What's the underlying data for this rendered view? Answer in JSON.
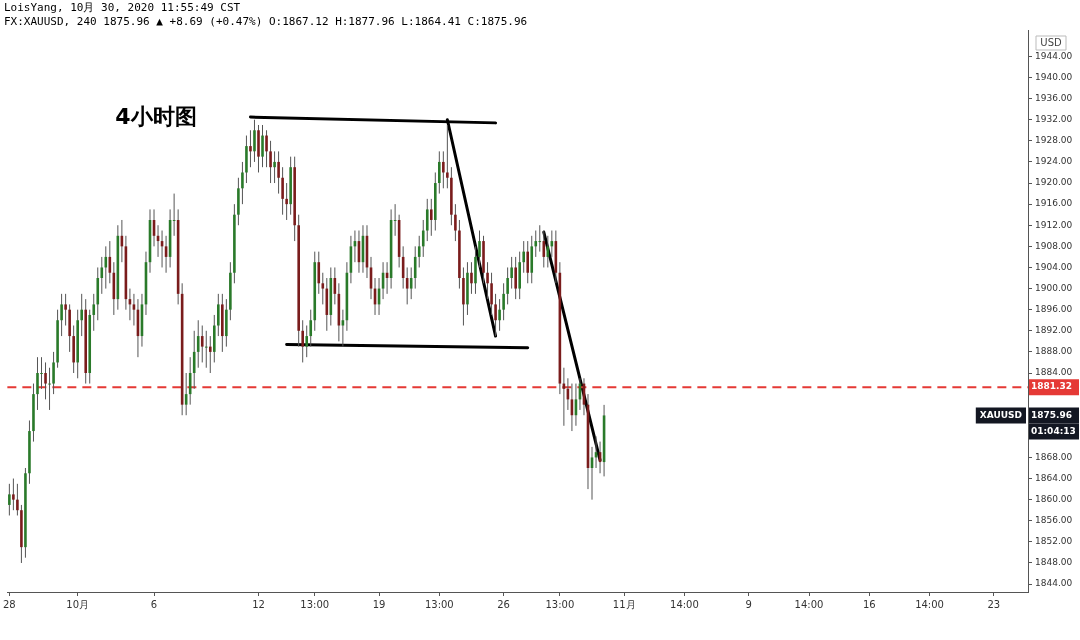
{
  "chart_data": {
    "type": "candlestick",
    "title": "4小时图",
    "subtitle": "FX:XAUUSD, 240 1875.96 ▲ +8.69 (+0.47%) O:1867.12 H:1877.96 L:1864.41 C:1875.96",
    "annotations": [
      "LoisYang, 10月 30, 2020 11:55:49 CST",
      "USD",
      "01:04:13",
      "XAUUSD",
      "1875.96"
    ],
    "categories": [
      "28",
      null,
      null,
      null,
      null,
      null,
      null,
      null,
      null,
      null,
      null,
      null,
      null,
      null,
      null,
      null,
      null,
      "10月",
      null,
      null,
      null,
      null,
      null,
      null,
      null,
      null,
      null,
      null,
      null,
      null,
      null,
      null,
      null,
      null,
      null,
      null,
      "6",
      null,
      null,
      null,
      null,
      null,
      null,
      null,
      null,
      null,
      null,
      null,
      null,
      null,
      null,
      null,
      null,
      null,
      null,
      null,
      null,
      null,
      null,
      null,
      null,
      null,
      "12",
      null,
      null,
      null,
      null,
      null,
      null,
      null,
      null,
      null,
      null,
      null,
      null,
      null,
      "13:00",
      null,
      null,
      null,
      null,
      null,
      null,
      null,
      null,
      null,
      null,
      null,
      null,
      null,
      null,
      null,
      "19",
      null,
      null,
      null,
      null,
      null,
      null,
      null,
      null,
      null,
      null,
      null,
      null,
      null,
      null,
      "13:00",
      null,
      null,
      null,
      null,
      null,
      null,
      null,
      null,
      null,
      null,
      null,
      null,
      null,
      null,
      null,
      "26",
      null,
      null,
      null,
      null,
      null,
      null,
      null,
      null,
      null,
      null,
      null,
      null,
      null,
      "13:00",
      null,
      null,
      null,
      null,
      null,
      null,
      null,
      null,
      null,
      null,
      null,
      null,
      null,
      null,
      null,
      "11月",
      null,
      null,
      null,
      null,
      null,
      null,
      null,
      null,
      null,
      null,
      null,
      null,
      null,
      null,
      "14:00",
      null,
      null,
      null,
      null,
      null,
      null,
      null,
      null,
      null,
      null,
      null,
      null,
      null,
      null,
      null,
      "9",
      null,
      null,
      null,
      null,
      null,
      null,
      null,
      null,
      null,
      null,
      null,
      null,
      null,
      null,
      "14:00",
      null,
      null,
      null,
      null,
      null,
      null,
      null,
      null,
      null,
      null,
      null,
      null,
      null,
      null,
      "16",
      null,
      null,
      null,
      null,
      null,
      null,
      null,
      null,
      null,
      null,
      null,
      null,
      null,
      null,
      "14:00",
      null,
      null,
      null,
      null,
      null,
      null,
      null,
      null,
      null,
      null,
      null,
      null,
      null,
      null,
      null,
      "23",
      null,
      null,
      null,
      null,
      null,
      null,
      null,
      null
    ],
    "ylim": [
      1842.5,
      1949
    ],
    "yticks": [
      {
        "value": 1844,
        "label": "1844.00"
      },
      {
        "value": 1848,
        "label": "1848.00"
      },
      {
        "value": 1852,
        "label": "1852.00"
      },
      {
        "value": 1856,
        "label": "1856.00"
      },
      {
        "value": 1860,
        "label": "1860.00"
      },
      {
        "value": 1864,
        "label": "1864.00"
      },
      {
        "value": 1868,
        "label": "1868.00"
      },
      {
        "value": 1872,
        "label": null
      },
      {
        "value": 1876,
        "label": null
      },
      {
        "value": 1880,
        "label": null
      },
      {
        "value": 1884,
        "label": "1884.00"
      },
      {
        "value": 1888,
        "label": "1888.00"
      },
      {
        "value": 1892,
        "label": "1892.00"
      },
      {
        "value": 1896,
        "label": "1896.00"
      },
      {
        "value": 1900,
        "label": "1900.00"
      },
      {
        "value": 1904,
        "label": "1904.00"
      },
      {
        "value": 1908,
        "label": "1908.00"
      },
      {
        "value": 1912,
        "label": "1912.00"
      },
      {
        "value": 1916,
        "label": "1916.00"
      },
      {
        "value": 1920,
        "label": "1920.00"
      },
      {
        "value": 1924,
        "label": "1924.00"
      },
      {
        "value": 1928,
        "label": "1928.00"
      },
      {
        "value": 1932,
        "label": "1932.00"
      },
      {
        "value": 1936,
        "label": "1936.00"
      },
      {
        "value": 1940,
        "label": "1940.00"
      },
      {
        "value": 1944,
        "label": "1944.00"
      }
    ],
    "ref_lines": [
      {
        "axis": "y",
        "value": 1881.32,
        "label": "1881.32",
        "color": "#e53935",
        "line_style": "dashed"
      }
    ],
    "ohlc": [
      [
        1859,
        1863,
        1857,
        1861
      ],
      [
        1861,
        1864,
        1858,
        1860
      ],
      [
        1860,
        1863,
        1857,
        1858
      ],
      [
        1858,
        1859,
        1848,
        1851
      ],
      [
        1851,
        1866,
        1849,
        1865
      ],
      [
        1865,
        1875,
        1863,
        1873
      ],
      [
        1873,
        1882,
        1871,
        1880
      ],
      [
        1880,
        1887,
        1877,
        1884
      ],
      [
        1884,
        1887,
        1881,
        1884
      ],
      [
        1884,
        1886,
        1879,
        1882
      ],
      [
        1882,
        1885,
        1877,
        1882
      ],
      [
        1882,
        1888,
        1880,
        1886
      ],
      [
        1886,
        1896,
        1885,
        1894
      ],
      [
        1894,
        1899,
        1891,
        1897
      ],
      [
        1897,
        1899,
        1893,
        1896
      ],
      [
        1896,
        1897,
        1888,
        1891
      ],
      [
        1891,
        1893,
        1884,
        1886
      ],
      [
        1886,
        1896,
        1883,
        1894
      ],
      [
        1894,
        1899,
        1891,
        1896
      ],
      [
        1896,
        1898,
        1882,
        1884
      ],
      [
        1884,
        1896,
        1882,
        1895
      ],
      [
        1895,
        1899,
        1892,
        1897
      ],
      [
        1897,
        1904,
        1894,
        1902
      ],
      [
        1902,
        1906,
        1899,
        1904
      ],
      [
        1904,
        1908,
        1900,
        1906
      ],
      [
        1906,
        1909,
        1901,
        1903
      ],
      [
        1903,
        1905,
        1895,
        1898
      ],
      [
        1898,
        1912,
        1896,
        1910
      ],
      [
        1910,
        1913,
        1905,
        1908
      ],
      [
        1908,
        1910,
        1896,
        1898
      ],
      [
        1898,
        1900,
        1894,
        1897
      ],
      [
        1897,
        1899,
        1893,
        1896
      ],
      [
        1896,
        1898,
        1887,
        1891
      ],
      [
        1891,
        1899,
        1889,
        1897
      ],
      [
        1897,
        1907,
        1895,
        1905
      ],
      [
        1905,
        1915,
        1903,
        1913
      ],
      [
        1913,
        1915,
        1908,
        1910
      ],
      [
        1910,
        1912,
        1906,
        1909
      ],
      [
        1909,
        1911,
        1904,
        1908
      ],
      [
        1908,
        1910,
        1903,
        1906
      ],
      [
        1906,
        1915,
        1904,
        1913
      ],
      [
        1913,
        1918,
        1910,
        1913
      ],
      [
        1913,
        1915,
        1897,
        1899
      ],
      [
        1899,
        1901,
        1876,
        1878
      ],
      [
        1878,
        1884,
        1876,
        1880
      ],
      [
        1880,
        1887,
        1878,
        1884
      ],
      [
        1884,
        1892,
        1881,
        1888
      ],
      [
        1888,
        1894,
        1885,
        1891
      ],
      [
        1891,
        1893,
        1886,
        1889
      ],
      [
        1889,
        1892,
        1885,
        1889
      ],
      [
        1889,
        1891,
        1884,
        1888
      ],
      [
        1888,
        1895,
        1886,
        1893
      ],
      [
        1893,
        1899,
        1891,
        1897
      ],
      [
        1897,
        1899,
        1888,
        1891
      ],
      [
        1891,
        1898,
        1889,
        1896
      ],
      [
        1896,
        1905,
        1894,
        1903
      ],
      [
        1903,
        1916,
        1901,
        1914
      ],
      [
        1914,
        1921,
        1912,
        1919
      ],
      [
        1919,
        1924,
        1916,
        1922
      ],
      [
        1922,
        1929,
        1920,
        1927
      ],
      [
        1927,
        1930,
        1923,
        1926
      ],
      [
        1926,
        1932,
        1924,
        1930
      ],
      [
        1930,
        1931,
        1922,
        1925
      ],
      [
        1925,
        1931,
        1923,
        1929
      ],
      [
        1929,
        1930,
        1923,
        1926
      ],
      [
        1926,
        1928,
        1920,
        1923
      ],
      [
        1923,
        1926,
        1920,
        1924
      ],
      [
        1924,
        1926,
        1918,
        1921
      ],
      [
        1921,
        1923,
        1914,
        1917
      ],
      [
        1917,
        1920,
        1913,
        1916
      ],
      [
        1916,
        1925,
        1914,
        1923
      ],
      [
        1923,
        1925,
        1909,
        1912
      ],
      [
        1912,
        1914,
        1889,
        1892
      ],
      [
        1892,
        1894,
        1886,
        1889
      ],
      [
        1889,
        1893,
        1887,
        1891
      ],
      [
        1891,
        1896,
        1889,
        1894
      ],
      [
        1894,
        1907,
        1892,
        1905
      ],
      [
        1905,
        1907,
        1899,
        1901
      ],
      [
        1901,
        1903,
        1897,
        1900
      ],
      [
        1900,
        1902,
        1892,
        1895
      ],
      [
        1895,
        1904,
        1893,
        1902
      ],
      [
        1902,
        1904,
        1897,
        1899
      ],
      [
        1899,
        1901,
        1890,
        1893
      ],
      [
        1893,
        1896,
        1889,
        1894
      ],
      [
        1894,
        1905,
        1892,
        1903
      ],
      [
        1903,
        1910,
        1901,
        1908
      ],
      [
        1908,
        1911,
        1905,
        1909
      ],
      [
        1909,
        1911,
        1903,
        1905
      ],
      [
        1905,
        1912,
        1903,
        1910
      ],
      [
        1910,
        1912,
        1902,
        1904
      ],
      [
        1904,
        1906,
        1898,
        1900
      ],
      [
        1900,
        1902,
        1895,
        1897
      ],
      [
        1897,
        1902,
        1895,
        1900
      ],
      [
        1900,
        1905,
        1898,
        1903
      ],
      [
        1903,
        1905,
        1899,
        1902
      ],
      [
        1902,
        1915,
        1900,
        1913
      ],
      [
        1913,
        1916,
        1910,
        1913
      ],
      [
        1913,
        1914,
        1904,
        1906
      ],
      [
        1906,
        1908,
        1900,
        1902
      ],
      [
        1902,
        1904,
        1897,
        1900
      ],
      [
        1900,
        1904,
        1898,
        1902
      ],
      [
        1902,
        1908,
        1900,
        1906
      ],
      [
        1906,
        1910,
        1904,
        1908
      ],
      [
        1908,
        1913,
        1906,
        1911
      ],
      [
        1911,
        1917,
        1909,
        1915
      ],
      [
        1915,
        1917,
        1910,
        1913
      ],
      [
        1913,
        1922,
        1911,
        1920
      ],
      [
        1920,
        1926,
        1918,
        1924
      ],
      [
        1924,
        1926,
        1919,
        1922
      ],
      [
        1922,
        1931,
        1919,
        1921
      ],
      [
        1921,
        1923,
        1912,
        1914
      ],
      [
        1914,
        1916,
        1909,
        1911
      ],
      [
        1911,
        1913,
        1900,
        1902
      ],
      [
        1902,
        1904,
        1893,
        1897
      ],
      [
        1897,
        1905,
        1895,
        1903
      ],
      [
        1903,
        1905,
        1899,
        1901
      ],
      [
        1901,
        1908,
        1899,
        1906
      ],
      [
        1906,
        1911,
        1904,
        1909
      ],
      [
        1909,
        1910,
        1901,
        1903
      ],
      [
        1903,
        1905,
        1898,
        1901
      ],
      [
        1901,
        1903,
        1895,
        1897
      ],
      [
        1897,
        1899,
        1891,
        1894
      ],
      [
        1894,
        1898,
        1892,
        1896
      ],
      [
        1896,
        1901,
        1894,
        1899
      ],
      [
        1899,
        1904,
        1897,
        1902
      ],
      [
        1902,
        1906,
        1900,
        1904
      ],
      [
        1904,
        1906,
        1898,
        1900
      ],
      [
        1900,
        1907,
        1898,
        1905
      ],
      [
        1905,
        1909,
        1903,
        1907
      ],
      [
        1907,
        1909,
        1901,
        1903
      ],
      [
        1903,
        1910,
        1901,
        1908
      ],
      [
        1908,
        1911,
        1906,
        1909
      ],
      [
        1909,
        1912,
        1907,
        1909
      ],
      [
        1909,
        1911,
        1904,
        1906
      ],
      [
        1906,
        1910,
        1904,
        1908
      ],
      [
        1908,
        1911,
        1906,
        1909
      ],
      [
        1909,
        1911,
        1901,
        1903
      ],
      [
        1903,
        1905,
        1880,
        1882
      ],
      [
        1882,
        1885,
        1874,
        1881
      ],
      [
        1881,
        1883,
        1877,
        1879
      ],
      [
        1879,
        1882,
        1873,
        1876
      ],
      [
        1876,
        1882,
        1874,
        1879
      ],
      [
        1879,
        1883,
        1877,
        1882
      ],
      [
        1882,
        1883,
        1876,
        1878
      ],
      [
        1878,
        1880,
        1862,
        1866
      ],
      [
        1866,
        1870,
        1860,
        1868
      ],
      [
        1868,
        1872,
        1866,
        1869
      ],
      [
        1869,
        1871,
        1865,
        1867.12
      ],
      [
        1867.12,
        1877.96,
        1864.41,
        1875.96
      ],
      null,
      null,
      null,
      null,
      null,
      null,
      null,
      null,
      null,
      null,
      null,
      null,
      null,
      null,
      null,
      null,
      null,
      null,
      null,
      null,
      null,
      null,
      null,
      null,
      null,
      null,
      null,
      null,
      null,
      null,
      null,
      null,
      null,
      null,
      null,
      null,
      null,
      null,
      null,
      null,
      null,
      null,
      null,
      null,
      null,
      null,
      null,
      null,
      null,
      null,
      null,
      null,
      null,
      null,
      null,
      null,
      null,
      null,
      null,
      null,
      null,
      null,
      null,
      null,
      null,
      null,
      null,
      null,
      null,
      null,
      null,
      null,
      null,
      null,
      null,
      null,
      null,
      null,
      null,
      null,
      null,
      null,
      null,
      null,
      null,
      null,
      null,
      null,
      null,
      null,
      null,
      null,
      null,
      null,
      null,
      null,
      null,
      null,
      null,
      null,
      null,
      null,
      null,
      null,
      null
    ],
    "colors": [
      "#2a7a2a",
      "#7a1c1c",
      "#7a1c1c",
      "#7a1c1c",
      "#2a7a2a",
      "#2a7a2a",
      "#2a7a2a",
      "#2a7a2a",
      "#2a7a2a",
      "#7a1c1c",
      "#2a7a2a",
      "#2a7a2a",
      "#2a7a2a",
      "#2a7a2a",
      "#7a1c1c",
      "#7a1c1c",
      "#7a1c1c",
      "#2a7a2a",
      "#2a7a2a",
      "#7a1c1c",
      "#2a7a2a",
      "#2a7a2a",
      "#2a7a2a",
      "#2a7a2a",
      "#2a7a2a",
      "#7a1c1c",
      "#7a1c1c",
      "#2a7a2a",
      "#7a1c1c",
      "#7a1c1c",
      "#7a1c1c",
      "#7a1c1c",
      "#7a1c1c",
      "#2a7a2a",
      "#2a7a2a",
      "#2a7a2a",
      "#7a1c1c",
      "#7a1c1c",
      "#7a1c1c",
      "#7a1c1c",
      "#2a7a2a",
      "#2a7a2a",
      "#7a1c1c",
      "#7a1c1c",
      "#2a7a2a",
      "#2a7a2a",
      "#2a7a2a",
      "#2a7a2a",
      "#7a1c1c",
      "#2a7a2a",
      "#7a1c1c",
      "#2a7a2a",
      "#2a7a2a",
      "#7a1c1c",
      "#2a7a2a",
      "#2a7a2a",
      "#2a7a2a",
      "#2a7a2a",
      "#2a7a2a",
      "#2a7a2a",
      "#7a1c1c",
      "#2a7a2a",
      "#7a1c1c",
      "#2a7a2a",
      "#7a1c1c",
      "#7a1c1c",
      "#2a7a2a",
      "#7a1c1c",
      "#7a1c1c",
      "#7a1c1c",
      "#2a7a2a",
      "#7a1c1c",
      "#7a1c1c",
      "#7a1c1c",
      "#2a7a2a",
      "#2a7a2a",
      "#2a7a2a",
      "#7a1c1c",
      "#7a1c1c",
      "#7a1c1c",
      "#2a7a2a",
      "#7a1c1c",
      "#7a1c1c",
      "#2a7a2a",
      "#2a7a2a",
      "#2a7a2a",
      "#2a7a2a",
      "#7a1c1c",
      "#2a7a2a",
      "#7a1c1c",
      "#7a1c1c",
      "#7a1c1c",
      "#2a7a2a",
      "#2a7a2a",
      "#7a1c1c",
      "#2a7a2a",
      "#2a7a2a",
      "#7a1c1c",
      "#7a1c1c",
      "#7a1c1c",
      "#2a7a2a",
      "#2a7a2a",
      "#2a7a2a",
      "#2a7a2a",
      "#2a7a2a",
      "#7a1c1c",
      "#2a7a2a",
      "#2a7a2a",
      "#7a1c1c",
      "#7a1c1c",
      "#7a1c1c",
      "#7a1c1c",
      "#7a1c1c",
      "#7a1c1c",
      "#2a7a2a",
      "#7a1c1c",
      "#2a7a2a",
      "#2a7a2a",
      "#7a1c1c",
      "#7a1c1c",
      "#7a1c1c",
      "#7a1c1c",
      "#2a7a2a",
      "#2a7a2a",
      "#2a7a2a",
      "#2a7a2a",
      "#7a1c1c",
      "#2a7a2a",
      "#2a7a2a",
      "#7a1c1c",
      "#2a7a2a",
      "#2a7a2a",
      "#2a7a2a",
      "#7a1c1c",
      "#2a7a2a",
      "#2a7a2a",
      "#7a1c1c",
      "#7a1c1c",
      "#7a1c1c",
      "#7a1c1c",
      "#7a1c1c",
      "#2a7a2a",
      "#2a7a2a",
      "#7a1c1c",
      "#7a1c1c",
      "#2a7a2a",
      "#2a7a2a",
      "#7a1c1c",
      "#2a7a2a",
      null,
      null,
      null,
      null,
      null,
      null,
      null,
      null,
      null,
      null,
      null,
      null,
      null,
      null,
      null,
      null,
      null,
      null,
      null,
      null,
      null,
      null,
      null,
      null,
      null,
      null,
      null,
      null,
      null,
      null,
      null,
      null,
      null,
      null,
      null,
      null,
      null,
      null,
      null,
      null,
      null,
      null,
      null,
      null,
      null,
      null,
      null,
      null,
      null,
      null,
      null,
      null,
      null,
      null,
      null,
      null,
      null,
      null,
      null,
      null,
      null,
      null,
      null,
      null,
      null,
      null,
      null,
      null,
      null,
      null,
      null,
      null,
      null,
      null,
      null,
      null,
      null,
      null,
      null,
      null,
      null,
      null,
      null,
      null,
      null,
      null,
      null,
      null,
      null,
      null,
      null,
      null,
      null,
      null,
      null,
      null,
      null,
      null,
      null,
      null,
      null,
      null,
      null,
      null,
      null
    ],
    "series": [
      {
        "type": "line",
        "color": "#000000",
        "values": [
          null,
          null,
          null,
          null,
          null,
          null,
          null,
          null,
          null,
          null,
          null,
          null,
          null,
          null,
          null,
          null,
          null,
          null,
          null,
          null,
          null,
          null,
          null,
          null,
          null,
          null,
          null,
          null,
          null,
          null,
          null,
          null,
          null,
          null,
          null,
          null,
          null,
          null,
          null,
          null,
          null,
          null,
          null,
          null,
          null,
          null,
          null,
          null,
          null,
          null,
          null,
          null,
          null,
          null,
          null,
          null,
          null,
          null,
          null,
          null,
          1932.5,
          null,
          null,
          null,
          null,
          null,
          null,
          null,
          null,
          null,
          null,
          null,
          null,
          null,
          null,
          null,
          null,
          null,
          null,
          null,
          null,
          null,
          null,
          null,
          null,
          null,
          null,
          null,
          null,
          null,
          null,
          null,
          null,
          null,
          null,
          null,
          null,
          null,
          null,
          null,
          null,
          null,
          null,
          null,
          null,
          null,
          null,
          null,
          null,
          null,
          null,
          null,
          null,
          null,
          null,
          null,
          null,
          null,
          null,
          null,
          null,
          1931.4,
          null,
          null,
          null,
          null,
          null,
          null,
          null,
          null,
          null,
          null,
          null,
          null,
          null,
          null,
          null,
          null,
          null,
          null,
          null,
          null,
          null,
          null,
          null,
          null,
          null,
          null,
          null,
          null,
          null,
          null,
          null,
          null,
          null,
          null,
          null,
          null,
          null,
          null,
          null,
          null,
          null,
          null,
          null,
          null,
          null,
          null,
          null,
          null,
          null,
          null,
          null,
          null,
          null,
          null,
          null,
          null,
          null,
          null,
          null,
          null,
          null,
          null,
          null,
          null,
          null,
          null,
          null,
          null,
          null,
          null,
          null,
          null,
          null,
          null,
          null,
          null,
          null,
          null,
          null,
          null,
          null,
          null,
          null,
          null,
          null,
          null,
          null,
          null,
          null,
          null,
          null,
          null,
          null,
          null,
          null,
          null,
          null,
          null,
          null,
          null,
          null,
          null,
          null,
          null,
          null,
          null,
          null,
          null,
          null,
          null,
          null,
          null,
          null,
          null,
          null,
          null,
          null,
          null,
          null,
          null,
          null,
          null,
          null,
          null,
          null,
          null,
          null,
          null,
          null,
          null,
          null,
          null
        ]
      },
      {
        "type": "line",
        "color": "#000000",
        "values": [
          null,
          null,
          null,
          null,
          null,
          null,
          null,
          null,
          null,
          null,
          null,
          null,
          null,
          null,
          null,
          null,
          null,
          null,
          null,
          null,
          null,
          null,
          null,
          null,
          null,
          null,
          null,
          null,
          null,
          null,
          null,
          null,
          null,
          null,
          null,
          null,
          null,
          null,
          null,
          null,
          null,
          null,
          null,
          null,
          null,
          null,
          null,
          null,
          null,
          null,
          null,
          null,
          null,
          null,
          null,
          null,
          null,
          null,
          null,
          null,
          null,
          null,
          null,
          null,
          null,
          null,
          null,
          null,
          null,
          1889.4,
          null,
          null,
          null,
          null,
          null,
          null,
          null,
          null,
          null,
          null,
          null,
          null,
          null,
          null,
          null,
          null,
          null,
          null,
          null,
          null,
          null,
          null,
          null,
          null,
          null,
          null,
          null,
          null,
          null,
          null,
          null,
          null,
          null,
          null,
          null,
          null,
          null,
          null,
          null,
          null,
          null,
          null,
          null,
          null,
          null,
          null,
          null,
          null,
          null,
          null,
          null,
          null,
          null,
          null,
          null,
          null,
          null,
          null,
          null,
          1888.8,
          null,
          null,
          null,
          null,
          null,
          null,
          null,
          null,
          null,
          null,
          null,
          null,
          null,
          null,
          null,
          null,
          null,
          null,
          null,
          null,
          null,
          null,
          null,
          null,
          null,
          null,
          null,
          null,
          null,
          null,
          null,
          null,
          null,
          null,
          null,
          null,
          null,
          null,
          null,
          null,
          null,
          null,
          null,
          null,
          null,
          null,
          null,
          null,
          null,
          null,
          null,
          null,
          null,
          null,
          null,
          null,
          null,
          null,
          null,
          null,
          null,
          null,
          null,
          null,
          null,
          null,
          null,
          null,
          null,
          null,
          null,
          null,
          null,
          null,
          null,
          null,
          null,
          null,
          null,
          null,
          null,
          null,
          null,
          null,
          null,
          null,
          null,
          null,
          null,
          null,
          null,
          null,
          null,
          null,
          null,
          null,
          null,
          null,
          null,
          null,
          null,
          null,
          null,
          null,
          null,
          null,
          null,
          null,
          null,
          null,
          null,
          null,
          null,
          null,
          null,
          null,
          null,
          null,
          null,
          null,
          null,
          null,
          null,
          null
        ]
      },
      {
        "type": "line",
        "color": "#000000",
        "values": [
          null,
          null,
          null,
          null,
          null,
          null,
          null,
          null,
          null,
          null,
          null,
          null,
          null,
          null,
          null,
          null,
          null,
          null,
          null,
          null,
          null,
          null,
          null,
          null,
          null,
          null,
          null,
          null,
          null,
          null,
          null,
          null,
          null,
          null,
          null,
          null,
          null,
          null,
          null,
          null,
          null,
          null,
          null,
          null,
          null,
          null,
          null,
          null,
          null,
          null,
          null,
          null,
          null,
          null,
          null,
          null,
          null,
          null,
          null,
          null,
          null,
          null,
          null,
          null,
          null,
          null,
          null,
          null,
          null,
          null,
          null,
          null,
          null,
          null,
          null,
          null,
          null,
          null,
          null,
          null,
          null,
          null,
          null,
          null,
          null,
          null,
          null,
          null,
          null,
          null,
          null,
          null,
          null,
          null,
          null,
          null,
          null,
          null,
          null,
          null,
          null,
          null,
          null,
          null,
          null,
          null,
          null,
          null,
          null,
          1932,
          null,
          null,
          null,
          null,
          null,
          null,
          null,
          null,
          null,
          null,
          null,
          1891,
          null,
          null,
          null,
          null,
          null,
          null,
          null,
          null,
          null,
          null,
          null,
          null,
          null,
          null,
          null,
          null,
          null,
          null,
          null,
          null,
          null,
          null,
          null,
          null,
          null,
          null,
          null,
          null,
          null,
          null,
          null,
          null,
          null,
          null,
          null,
          null,
          null,
          null,
          null,
          null,
          null,
          null,
          null,
          null,
          null,
          null,
          null,
          null,
          null,
          null,
          null,
          null,
          null,
          null,
          null,
          null,
          null,
          null,
          null,
          null,
          null,
          null,
          null,
          null,
          null,
          null,
          null,
          null,
          null,
          null,
          null,
          null,
          null,
          null,
          null,
          null,
          null,
          null,
          null,
          null,
          null,
          null,
          null,
          null,
          null,
          null,
          null,
          null,
          null,
          null,
          null,
          null,
          null,
          null,
          null,
          null,
          null,
          null,
          null,
          null,
          null,
          null,
          null,
          null,
          null,
          null,
          null,
          null,
          null,
          null,
          null,
          null,
          null,
          null,
          null,
          null,
          null,
          null,
          null,
          null,
          null,
          null,
          null,
          null,
          null,
          null,
          null,
          null,
          null,
          null,
          null,
          null
        ]
      },
      {
        "type": "line",
        "color": "#000000",
        "values": [
          null,
          null,
          null,
          null,
          null,
          null,
          null,
          null,
          null,
          null,
          null,
          null,
          null,
          null,
          null,
          null,
          null,
          null,
          null,
          null,
          null,
          null,
          null,
          null,
          null,
          null,
          null,
          null,
          null,
          null,
          null,
          null,
          null,
          null,
          null,
          null,
          null,
          null,
          null,
          null,
          null,
          null,
          null,
          null,
          null,
          null,
          null,
          null,
          null,
          null,
          null,
          null,
          null,
          null,
          null,
          null,
          null,
          null,
          null,
          null,
          null,
          null,
          null,
          null,
          null,
          null,
          null,
          null,
          null,
          null,
          null,
          null,
          null,
          null,
          null,
          null,
          null,
          null,
          null,
          null,
          null,
          null,
          null,
          null,
          null,
          null,
          null,
          null,
          null,
          null,
          null,
          null,
          null,
          null,
          null,
          null,
          null,
          null,
          null,
          null,
          null,
          null,
          null,
          null,
          null,
          null,
          null,
          null,
          null,
          null,
          null,
          null,
          null,
          null,
          null,
          null,
          null,
          null,
          null,
          null,
          null,
          null,
          null,
          null,
          null,
          null,
          null,
          null,
          null,
          null,
          null,
          null,
          null,
          1910.7,
          null,
          null,
          null,
          null,
          null,
          null,
          null,
          null,
          null,
          null,
          null,
          null,
          null,
          1867.5,
          null,
          null,
          null,
          null,
          null,
          null,
          null,
          null,
          null,
          null,
          null,
          null,
          null,
          null,
          null,
          null,
          null,
          null,
          null,
          null,
          null,
          null,
          null,
          null,
          null,
          null,
          null,
          null,
          null,
          null,
          null,
          null,
          null,
          null,
          null,
          null,
          null,
          null,
          null,
          null,
          null,
          null,
          null,
          null,
          null,
          null,
          null,
          null,
          null,
          null,
          null,
          null,
          null,
          null,
          null,
          null,
          null,
          null,
          null,
          null,
          null,
          null,
          null,
          null,
          null,
          null,
          null,
          null,
          null,
          null,
          null,
          null,
          null,
          null,
          null,
          null,
          null,
          null,
          null,
          null,
          null,
          null,
          null,
          null,
          null,
          null,
          null,
          null,
          null,
          null,
          null,
          null,
          null,
          null,
          null,
          null,
          null,
          null,
          null,
          null,
          null,
          null,
          null,
          null,
          null,
          null
        ]
      }
    ]
  }
}
